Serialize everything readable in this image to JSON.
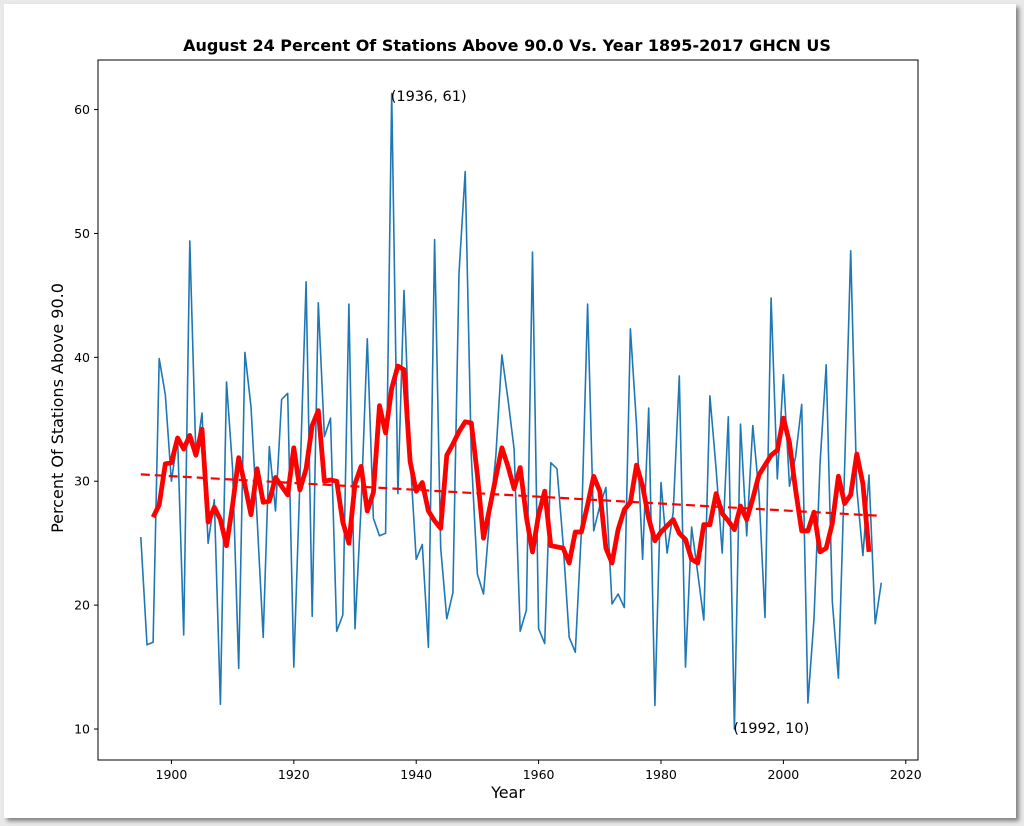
{
  "chart_data": {
    "type": "line",
    "title": "August 24 Percent Of Stations Above 90.0 Vs. Year 1895-2017 GHCN US",
    "xlabel": "Year",
    "ylabel": "Percent Of Stations Above 90.0",
    "xlim": [
      1888,
      2022
    ],
    "ylim": [
      7.5,
      64
    ],
    "xticks": [
      1900,
      1920,
      1940,
      1960,
      1980,
      2000,
      2020
    ],
    "yticks": [
      10,
      20,
      30,
      40,
      50,
      60
    ],
    "grid": false,
    "colors": {
      "raw": "#1f77b4",
      "smooth": "#ff0000",
      "trend": "#ff0000"
    },
    "series": [
      {
        "key": "raw",
        "x": [
          1895,
          1896,
          1897,
          1898,
          1899,
          1900,
          1901,
          1902,
          1903,
          1904,
          1905,
          1906,
          1907,
          1908,
          1909,
          1910,
          1911,
          1912,
          1913,
          1914,
          1915,
          1916,
          1917,
          1918,
          1919,
          1920,
          1921,
          1922,
          1923,
          1924,
          1925,
          1926,
          1927,
          1928,
          1929,
          1930,
          1931,
          1932,
          1933,
          1934,
          1935,
          1936,
          1937,
          1938,
          1939,
          1940,
          1941,
          1942,
          1943,
          1944,
          1945,
          1946,
          1947,
          1948,
          1949,
          1950,
          1951,
          1952,
          1953,
          1954,
          1955,
          1956,
          1957,
          1958,
          1959,
          1960,
          1961,
          1962,
          1963,
          1964,
          1965,
          1966,
          1967,
          1968,
          1969,
          1970,
          1971,
          1972,
          1973,
          1974,
          1975,
          1976,
          1977,
          1978,
          1979,
          1980,
          1981,
          1982,
          1983,
          1984,
          1985,
          1986,
          1987,
          1988,
          1989,
          1990,
          1991,
          1992,
          1993,
          1994,
          1995,
          1996,
          1997,
          1998,
          1999,
          2000,
          2001,
          2002,
          2003,
          2004,
          2005,
          2006,
          2007,
          2008,
          2009,
          2010,
          2011,
          2012,
          2013,
          2014,
          2015,
          2016
        ],
        "y": [
          25.5,
          16.8,
          17,
          39.9,
          37,
          30,
          33.5,
          17.6,
          49.4,
          32,
          35.5,
          25,
          28.5,
          12,
          38,
          31,
          14.9,
          40.4,
          36,
          27,
          17.4,
          32.8,
          27.6,
          36.6,
          37.1,
          15,
          30,
          46.1,
          19.1,
          44.4,
          33.6,
          35.1,
          17.9,
          19.2,
          44.3,
          18.1,
          28,
          41.5,
          27,
          25.6,
          25.8,
          61.3,
          29,
          45.4,
          32,
          23.7,
          24.9,
          16.6,
          49.5,
          24.6,
          18.9,
          21,
          46.8,
          55,
          32,
          22.5,
          20.9,
          27,
          32,
          40.2,
          36.6,
          32.6,
          17.9,
          19.6,
          48.5,
          18.1,
          16.9,
          31.5,
          31,
          25,
          17.4,
          16.2,
          26,
          44.3,
          26,
          28,
          29.5,
          20.1,
          20.9,
          19.8,
          42.3,
          34.6,
          23.7,
          35.9,
          11.9,
          29.9,
          24.2,
          27.5,
          38.5,
          15,
          26.3,
          22.6,
          18.8,
          36.9,
          31,
          24.2,
          35.2,
          10,
          34.6,
          25.6,
          34.5,
          29.1,
          19,
          44.8,
          30.2,
          38.6,
          29.6,
          32,
          36.2,
          12.1,
          18.9,
          31.5,
          39.4,
          20.3,
          14.1,
          31,
          48.6,
          29.4,
          24,
          30.5,
          18.5,
          21.8
        ]
      },
      {
        "key": "smooth",
        "x": [
          1897,
          1898,
          1899,
          1900,
          1901,
          1902,
          1903,
          1904,
          1905,
          1906,
          1907,
          1908,
          1909,
          1910,
          1911,
          1912,
          1913,
          1914,
          1915,
          1916,
          1917,
          1918,
          1919,
          1920,
          1921,
          1922,
          1923,
          1924,
          1925,
          1926,
          1927,
          1928,
          1929,
          1930,
          1931,
          1932,
          1933,
          1934,
          1935,
          1936,
          1937,
          1938,
          1939,
          1940,
          1941,
          1942,
          1943,
          1944,
          1945,
          1946,
          1947,
          1948,
          1949,
          1950,
          1951,
          1952,
          1953,
          1954,
          1955,
          1956,
          1957,
          1958,
          1959,
          1960,
          1961,
          1962,
          1963,
          1964,
          1965,
          1966,
          1967,
          1968,
          1969,
          1970,
          1971,
          1972,
          1973,
          1974,
          1975,
          1976,
          1977,
          1978,
          1979,
          1980,
          1981,
          1982,
          1983,
          1984,
          1985,
          1986,
          1987,
          1988,
          1989,
          1990,
          1991,
          1992,
          1993,
          1994,
          1995,
          1996,
          1997,
          1998,
          1999,
          2000,
          2001,
          2002,
          2003,
          2004,
          2005,
          2006,
          2007,
          2008,
          2009,
          2010,
          2011,
          2012,
          2013,
          2014
        ],
        "y": [
          27.1,
          28.1,
          31.4,
          31.5,
          33.5,
          32.6,
          33.7,
          32.1,
          34.2,
          26.7,
          27.9,
          26.9,
          24.8,
          28.1,
          31.9,
          29.7,
          27.3,
          31,
          28.3,
          28.4,
          30.3,
          29.6,
          28.9,
          32.7,
          29.3,
          31,
          34.5,
          35.7,
          30,
          30.1,
          30,
          26.7,
          25,
          29.8,
          31.2,
          27.6,
          29.1,
          36.1,
          33.9,
          37.5,
          39.3,
          39,
          31.6,
          29.2,
          29.9,
          27.6,
          26.8,
          26.2,
          32.1,
          33,
          34,
          34.8,
          34.7,
          30.5,
          25.4,
          27.8,
          30.3,
          32.7,
          31.2,
          29.4,
          31.1,
          27.1,
          24.3,
          27.3,
          29.2,
          24.8,
          24.7,
          24.6,
          23.4,
          25.9,
          25.9,
          28.1,
          30.4,
          29.2,
          24.6,
          23.4,
          26.1,
          27.7,
          28.3,
          31.3,
          29.6,
          27,
          25.2,
          25.9,
          26.4,
          26.9,
          25.8,
          25.3,
          23.7,
          23.4,
          26.5,
          26.5,
          29,
          27.4,
          26.8,
          26.1,
          28,
          26.9,
          28.6,
          30.5,
          31.3,
          32.1,
          32.5,
          35.1,
          33.1,
          29.3,
          26,
          26,
          27.5,
          24.3,
          24.6,
          26.6,
          30.4,
          28.2,
          28.9,
          32.2,
          29.8,
          24.3
        ]
      },
      {
        "key": "trend",
        "x": [
          1895,
          2016
        ],
        "y": [
          30.55,
          27.2
        ]
      }
    ],
    "annotations": [
      {
        "text": "(1936, 61)",
        "x": 1936,
        "y": 61
      },
      {
        "text": "(1992, 10)",
        "x": 1992,
        "y": 10
      }
    ]
  }
}
